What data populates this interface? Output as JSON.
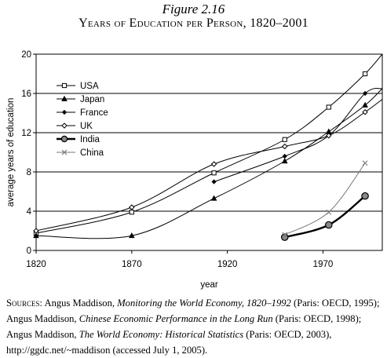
{
  "figure": {
    "number": "Figure 2.16",
    "title": "Years of Education per Person, 1820–2001"
  },
  "sources": {
    "label": "Sources:",
    "p1": " Angus Maddison, ",
    "t1": "Monitoring the World Economy, 1820–1992",
    "p2": " (Paris: OECD, 1995); Angus Maddison, ",
    "t2": "Chinese Economic Performance in the Long Run",
    "p3": " (Paris: OECD, 1998); Angus Maddison, ",
    "t3": "The World Economy: Historical Statistics",
    "p4": " (Paris: OECD, 2003), http://ggdc.net/~maddison (accessed July 1, 2005)."
  },
  "chart_data": {
    "type": "line",
    "xlabel": "year",
    "ylabel": "average years of education",
    "xlim": [
      1820,
      2001
    ],
    "ylim": [
      0,
      20
    ],
    "xticks": [
      1820,
      1870,
      1920,
      1970
    ],
    "yticks": [
      0,
      4,
      8,
      12,
      16,
      20
    ],
    "grid": "horizontal",
    "legend_position": "top-left",
    "series": [
      {
        "name": "USA",
        "marker": "square",
        "color": "#000000",
        "x": [
          1820,
          1870,
          1913,
          1950,
          1973,
          1992,
          2001
        ],
        "y": [
          1.75,
          3.9,
          7.9,
          11.3,
          14.6,
          18.0,
          20.0
        ]
      },
      {
        "name": "Japan",
        "marker": "triangle",
        "color": "#000000",
        "x": [
          1820,
          1870,
          1913,
          1950,
          1973,
          1992,
          2001
        ],
        "y": [
          1.5,
          1.5,
          5.3,
          9.1,
          12.1,
          14.8,
          16.5
        ]
      },
      {
        "name": "France",
        "marker": "diamond-filled",
        "color": "#000000",
        "x": [
          1913,
          1950,
          1973,
          1992,
          2001
        ],
        "y": [
          7.0,
          9.6,
          11.7,
          16.0,
          16.5
        ]
      },
      {
        "name": "UK",
        "marker": "diamond",
        "color": "#000000",
        "x": [
          1820,
          1870,
          1913,
          1950,
          1973,
          1992,
          2001
        ],
        "y": [
          2.0,
          4.4,
          8.8,
          10.6,
          11.7,
          14.1,
          15.4
        ]
      },
      {
        "name": "India",
        "marker": "circle-filled",
        "color": "#000000",
        "x": [
          1950,
          1973,
          1992
        ],
        "y": [
          1.35,
          2.6,
          5.55
        ]
      },
      {
        "name": "China",
        "marker": "x",
        "color": "#777777",
        "x": [
          1950,
          1973,
          1992
        ],
        "y": [
          1.6,
          3.9,
          8.9
        ]
      }
    ]
  }
}
